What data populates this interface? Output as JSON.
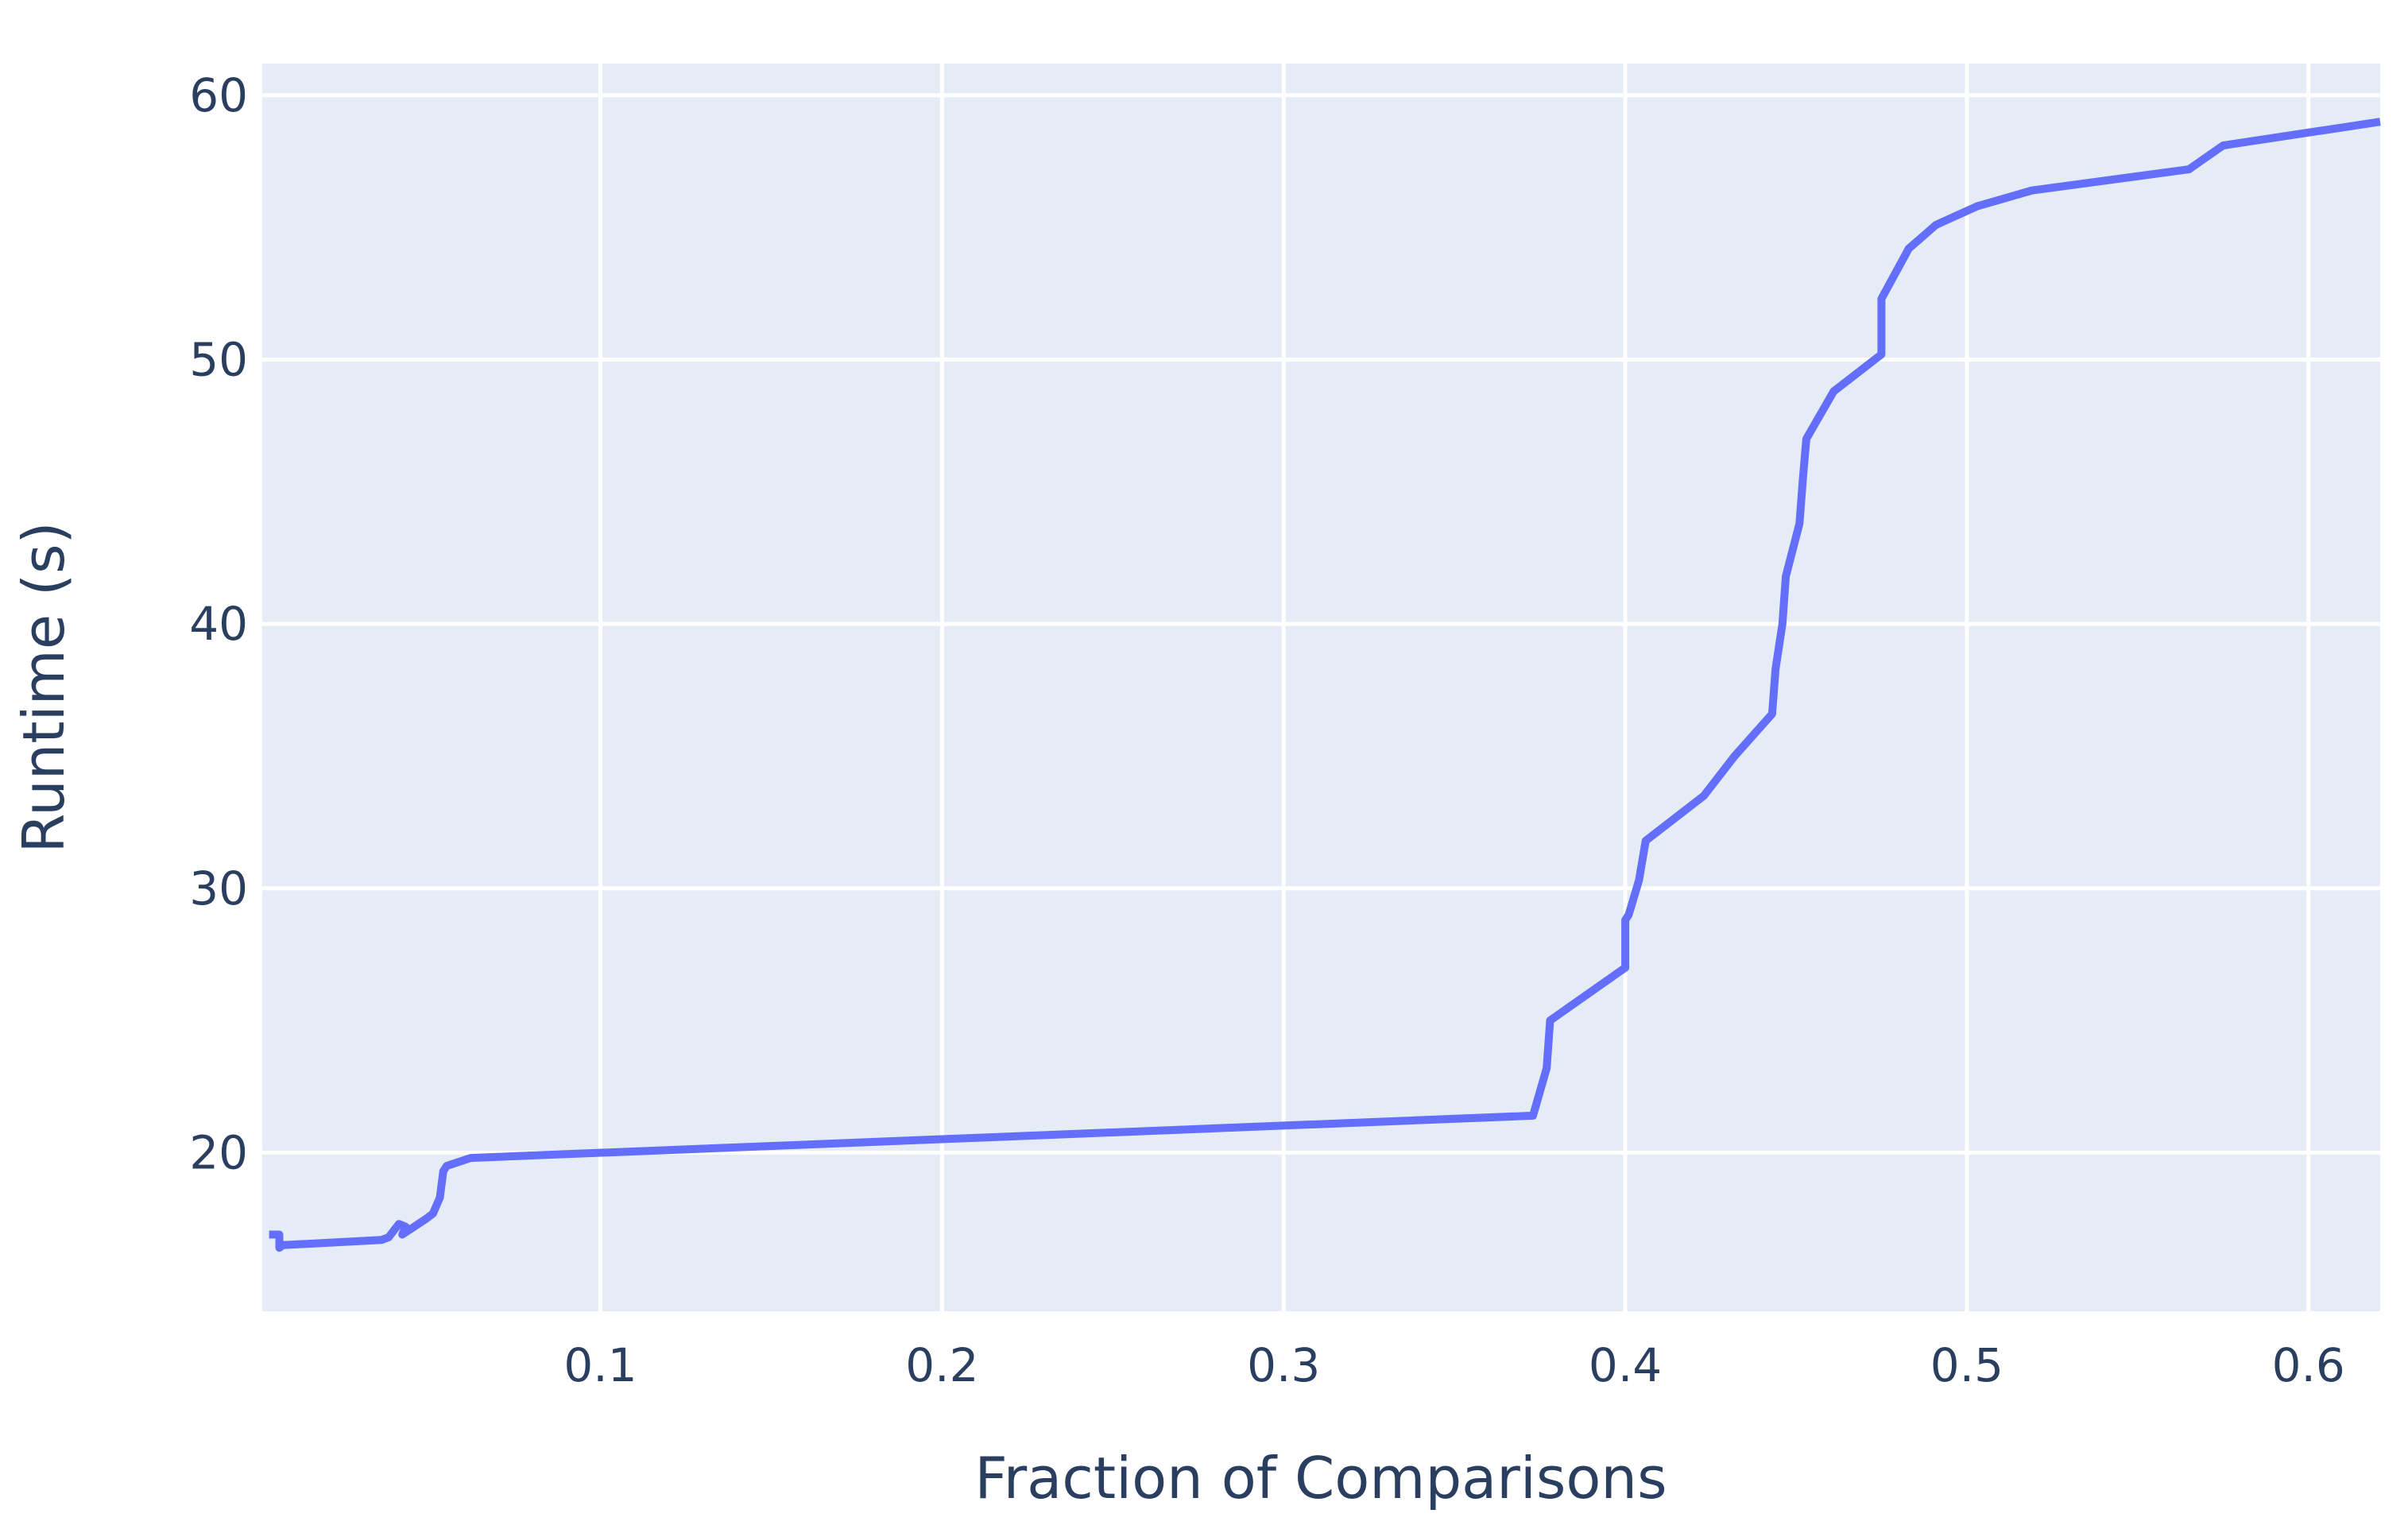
{
  "chart_data": {
    "type": "line",
    "title": "",
    "xlabel": "Fraction of Comparisons",
    "ylabel": "Runtime (s)",
    "xlim": [
      0.001,
      0.621
    ],
    "ylim": [
      14.0,
      61.2
    ],
    "xticks": [
      0.1,
      0.2,
      0.3,
      0.4,
      0.5,
      0.6
    ],
    "xtick_labels": [
      "0.1",
      "0.2",
      "0.3",
      "0.4",
      "0.5",
      "0.6"
    ],
    "yticks": [
      20,
      30,
      40,
      50,
      60
    ],
    "ytick_labels": [
      "20",
      "30",
      "40",
      "50",
      "60"
    ],
    "grid": true,
    "legend": "none",
    "colors": {
      "plot_background": "#e5ecf6",
      "grid": "#ffffff",
      "line": "#636efa",
      "text": "#2a3f5f"
    },
    "series": [
      {
        "x": [
          0.003,
          0.006,
          0.006,
          0.007,
          0.036,
          0.038,
          0.041,
          0.043,
          0.042,
          0.049,
          0.051,
          0.053,
          0.054,
          0.055,
          0.062,
          0.373,
          0.377,
          0.378,
          0.4,
          0.4,
          0.401,
          0.404,
          0.406,
          0.423,
          0.432,
          0.443,
          0.444,
          0.446,
          0.447,
          0.451,
          0.452,
          0.453,
          0.461,
          0.475,
          0.475,
          0.483,
          0.491,
          0.503,
          0.519,
          0.565,
          0.575,
          0.621
        ],
        "y": [
          16.9,
          16.9,
          16.4,
          16.5,
          16.7,
          16.8,
          17.3,
          17.2,
          16.9,
          17.5,
          17.7,
          18.3,
          19.3,
          19.5,
          19.8,
          21.4,
          23.2,
          25.0,
          27.0,
          28.8,
          29.0,
          30.3,
          31.8,
          33.5,
          35.0,
          36.6,
          38.3,
          40.0,
          41.8,
          43.8,
          45.5,
          47.0,
          48.8,
          50.2,
          52.3,
          54.2,
          55.1,
          55.8,
          56.4,
          57.2,
          58.1,
          59.0
        ]
      }
    ]
  }
}
